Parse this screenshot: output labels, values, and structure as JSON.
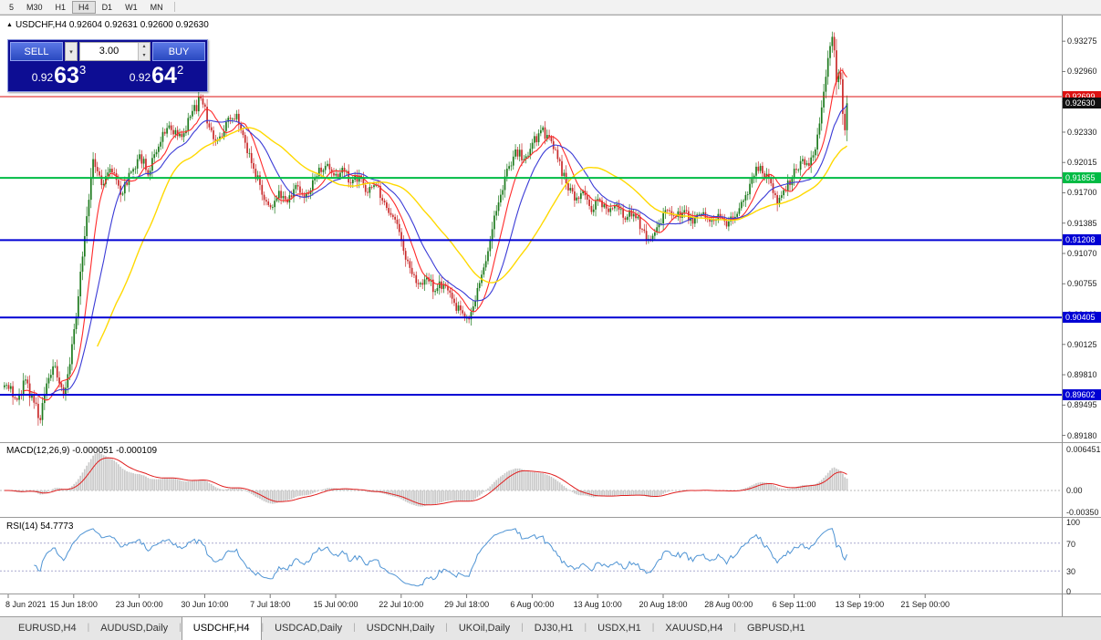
{
  "toolbar": {
    "timeframes": [
      "5",
      "M30",
      "H1",
      "H4",
      "D1",
      "W1",
      "MN"
    ],
    "active": "H4"
  },
  "icons": {
    "window_icon": "▲",
    "volume_dropdown": "▾",
    "spin_up": "▴",
    "spin_down": "▾"
  },
  "chart": {
    "symbol": "USDCHF,H4",
    "ohlc": "0.92604 0.92631 0.92600 0.92630"
  },
  "trade_panel": {
    "sell_label": "SELL",
    "buy_label": "BUY",
    "volume": "3.00",
    "sell_price": {
      "prefix": "0.92",
      "big": "63",
      "sup": "3"
    },
    "buy_price": {
      "prefix": "0.92",
      "big": "64",
      "sup": "2"
    }
  },
  "price_axis": {
    "ticks": [
      "0.93275",
      "0.92960",
      "0.92645",
      "0.92330",
      "0.92015",
      "0.91700",
      "0.91385",
      "0.91070",
      "0.90755",
      "0.90440",
      "0.90125",
      "0.89810",
      "0.89495",
      "0.89180"
    ],
    "price_labels": [
      {
        "value": "0.92699",
        "price": 0.92699,
        "color": "#dd1111",
        "line": true,
        "lw": 1,
        "kind": "resistance-line"
      },
      {
        "value": "0.92630",
        "price": 0.9263,
        "color": "#111111",
        "line": false,
        "lw": 0,
        "kind": "current-bid"
      },
      {
        "value": "0.91855",
        "price": 0.91855,
        "color": "#00bb44",
        "line": true,
        "lw": 2,
        "kind": "support-line"
      },
      {
        "value": "0.91208",
        "price": 0.91208,
        "color": "#0000d4",
        "line": true,
        "lw": 2,
        "kind": "support-line"
      },
      {
        "value": "0.90405",
        "price": 0.90405,
        "color": "#0000d4",
        "line": true,
        "lw": 2,
        "kind": "support-line"
      },
      {
        "value": "0.89602",
        "price": 0.89602,
        "color": "#0000d4",
        "line": true,
        "lw": 2,
        "kind": "support-line"
      }
    ]
  },
  "time_axis": {
    "labels": [
      "8 Jun 2021",
      "15 Jun 18:00",
      "23 Jun 00:00",
      "30 Jun 10:00",
      "7 Jul 18:00",
      "15 Jul 00:00",
      "22 Jul 10:00",
      "29 Jul 18:00",
      "6 Aug 00:00",
      "13 Aug 10:00",
      "20 Aug 18:00",
      "28 Aug 00:00",
      "6 Sep 11:00",
      "13 Sep 19:00",
      "21 Sep 00:00"
    ]
  },
  "macd": {
    "label": "MACD(12,26,9)",
    "values": "-0.000051 -0.000109",
    "axis": [
      "0.006451",
      "0.00",
      "-0.00350"
    ]
  },
  "rsi": {
    "label": "RSI(14)",
    "value": "54.7773",
    "axis": [
      "100",
      "70",
      "30",
      "0"
    ]
  },
  "tabs": {
    "active": "USDCHF,H4",
    "items": [
      {
        "label": "EURUSD,H4"
      },
      {
        "label": "AUDUSD,Daily"
      },
      {
        "label": "USDCHF,H4"
      },
      {
        "label": "USDCAD,Daily"
      },
      {
        "label": "USDCNH,Daily"
      },
      {
        "label": "UKOil,Daily"
      },
      {
        "label": "DJ30,H1"
      },
      {
        "label": "USDX,H1"
      },
      {
        "label": "XAUUSD,H4"
      },
      {
        "label": "GBPUSD,H1"
      }
    ]
  },
  "chart_data": {
    "type": "candlestick",
    "symbol": "USDCHF",
    "timeframe": "H4",
    "bars": 400,
    "price_range": [
      0.891,
      0.9352
    ],
    "close_anchors": [
      [
        0,
        0.897
      ],
      [
        6,
        0.8955
      ],
      [
        10,
        0.8976
      ],
      [
        14,
        0.8952
      ],
      [
        17,
        0.8934
      ],
      [
        20,
        0.8972
      ],
      [
        24,
        0.899
      ],
      [
        28,
        0.896
      ],
      [
        31,
        0.8992
      ],
      [
        34,
        0.904
      ],
      [
        38,
        0.9125
      ],
      [
        42,
        0.9205
      ],
      [
        46,
        0.9178
      ],
      [
        50,
        0.9195
      ],
      [
        55,
        0.9168
      ],
      [
        60,
        0.9192
      ],
      [
        64,
        0.921
      ],
      [
        68,
        0.9188
      ],
      [
        73,
        0.9218
      ],
      [
        78,
        0.924
      ],
      [
        84,
        0.9228
      ],
      [
        89,
        0.9255
      ],
      [
        93,
        0.9268
      ],
      [
        97,
        0.9238
      ],
      [
        101,
        0.9225
      ],
      [
        106,
        0.9248
      ],
      [
        110,
        0.9252
      ],
      [
        114,
        0.9222
      ],
      [
        118,
        0.9195
      ],
      [
        122,
        0.9168
      ],
      [
        126,
        0.9155
      ],
      [
        130,
        0.9172
      ],
      [
        134,
        0.916
      ],
      [
        138,
        0.9178
      ],
      [
        142,
        0.9165
      ],
      [
        147,
        0.9185
      ],
      [
        152,
        0.9198
      ],
      [
        156,
        0.9188
      ],
      [
        160,
        0.9196
      ],
      [
        164,
        0.918
      ],
      [
        168,
        0.9188
      ],
      [
        172,
        0.917
      ],
      [
        176,
        0.9178
      ],
      [
        180,
        0.916
      ],
      [
        184,
        0.9145
      ],
      [
        188,
        0.912
      ],
      [
        192,
        0.9092
      ],
      [
        196,
        0.9075
      ],
      [
        200,
        0.9082
      ],
      [
        204,
        0.9068
      ],
      [
        208,
        0.9075
      ],
      [
        212,
        0.906
      ],
      [
        216,
        0.9048
      ],
      [
        219,
        0.904
      ],
      [
        222,
        0.9052
      ],
      [
        226,
        0.9085
      ],
      [
        230,
        0.912
      ],
      [
        234,
        0.916
      ],
      [
        238,
        0.9195
      ],
      [
        242,
        0.9215
      ],
      [
        246,
        0.9205
      ],
      [
        250,
        0.9222
      ],
      [
        254,
        0.9235
      ],
      [
        258,
        0.9228
      ],
      [
        262,
        0.9205
      ],
      [
        266,
        0.918
      ],
      [
        270,
        0.9162
      ],
      [
        274,
        0.9172
      ],
      [
        278,
        0.915
      ],
      [
        282,
        0.9162
      ],
      [
        286,
        0.915
      ],
      [
        290,
        0.9158
      ],
      [
        294,
        0.9142
      ],
      [
        298,
        0.9148
      ],
      [
        302,
        0.9132
      ],
      [
        306,
        0.9122
      ],
      [
        310,
        0.9138
      ],
      [
        314,
        0.9152
      ],
      [
        318,
        0.9145
      ],
      [
        322,
        0.9152
      ],
      [
        326,
        0.9138
      ],
      [
        330,
        0.9148
      ],
      [
        334,
        0.914
      ],
      [
        338,
        0.9148
      ],
      [
        342,
        0.9135
      ],
      [
        346,
        0.9145
      ],
      [
        350,
        0.9162
      ],
      [
        354,
        0.9185
      ],
      [
        358,
        0.9198
      ],
      [
        362,
        0.9185
      ],
      [
        366,
        0.9158
      ],
      [
        370,
        0.9172
      ],
      [
        374,
        0.9195
      ],
      [
        378,
        0.9205
      ],
      [
        381,
        0.9198
      ],
      [
        384,
        0.9215
      ],
      [
        386,
        0.9242
      ],
      [
        388,
        0.9275
      ],
      [
        390,
        0.931
      ],
      [
        392,
        0.9332
      ],
      [
        393,
        0.9318
      ],
      [
        394,
        0.9285
      ],
      [
        395,
        0.9295
      ],
      [
        396,
        0.9288
      ],
      [
        397,
        0.9252
      ],
      [
        398,
        0.9235
      ],
      [
        399,
        0.9263
      ]
    ],
    "overlays": [
      {
        "name": "ma-fast",
        "period": 10,
        "color": "#ff2a2a"
      },
      {
        "name": "ma-mid",
        "period": 20,
        "color": "#3a3ad6"
      },
      {
        "name": "ma-slow",
        "period": 45,
        "color": "#ffd900"
      }
    ],
    "colors": {
      "up": "#1d7a1d",
      "down": "#c92b2b",
      "macd_hist": "#c9c9c9",
      "macd_signal": "#e01f1f",
      "rsi": "#4f94d4"
    }
  }
}
